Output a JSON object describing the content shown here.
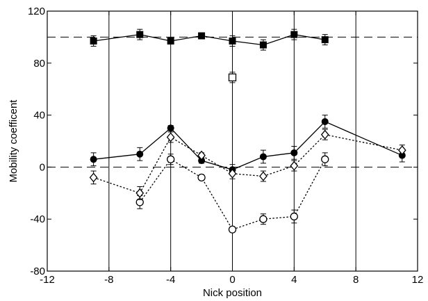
{
  "chart_data": {
    "type": "scatter",
    "xlabel": "Nick position",
    "ylabel": "Mobility coefficent",
    "xlim": [
      -12,
      12
    ],
    "ylim": [
      -80,
      120
    ],
    "x_ticks": [
      -12,
      -8,
      -4,
      0,
      4,
      8,
      12
    ],
    "y_ticks": [
      -80,
      -40,
      0,
      40,
      80,
      120
    ],
    "x_tick_labels": [
      "-12",
      "-8",
      "-4",
      "0",
      "4",
      "8",
      "12"
    ],
    "y_tick_labels": [
      "-80",
      "-40",
      "0",
      "40",
      "80",
      "120"
    ],
    "vertical_grid": [
      -8,
      -4,
      0,
      4,
      8
    ],
    "reference_lines": [
      100,
      0
    ],
    "series": [
      {
        "marker": "filled-square",
        "line": "solid",
        "x": [
          -9,
          -6,
          -4,
          -2,
          0,
          2,
          4,
          6
        ],
        "y": [
          97,
          102,
          97,
          101,
          97,
          94,
          102,
          98
        ],
        "err": [
          4,
          4,
          2,
          2,
          4,
          4,
          4,
          4
        ]
      },
      {
        "marker": "open-square",
        "line": "none",
        "x": [
          0
        ],
        "y": [
          69
        ],
        "err": [
          4
        ]
      },
      {
        "marker": "filled-circle",
        "line": "solid",
        "x": [
          -9,
          -6,
          -4,
          -2,
          0,
          2,
          4,
          6,
          11
        ],
        "y": [
          6,
          10,
          30,
          5,
          -2,
          8,
          11,
          35,
          9
        ],
        "err": [
          5,
          5,
          2,
          2,
          4,
          5,
          5,
          5,
          5
        ]
      },
      {
        "marker": "open-circle",
        "line": "dotted",
        "x": [
          -6,
          -4,
          -2,
          0,
          2,
          4,
          6
        ],
        "y": [
          -27,
          6,
          -8,
          -48,
          -40,
          -38,
          6
        ],
        "err": [
          5,
          4,
          2,
          2,
          4,
          5,
          5
        ]
      },
      {
        "marker": "open-diamond",
        "line": "dotted",
        "x": [
          -9,
          -6,
          -4,
          -2,
          0,
          2,
          4,
          6,
          11
        ],
        "y": [
          -8,
          -20,
          23,
          9,
          -5,
          -7,
          1,
          25,
          13
        ],
        "err": [
          5,
          5,
          4,
          2,
          4,
          4,
          4,
          4,
          4
        ]
      }
    ],
    "colors": {
      "ink": "#000000",
      "background": "#ffffff"
    }
  }
}
